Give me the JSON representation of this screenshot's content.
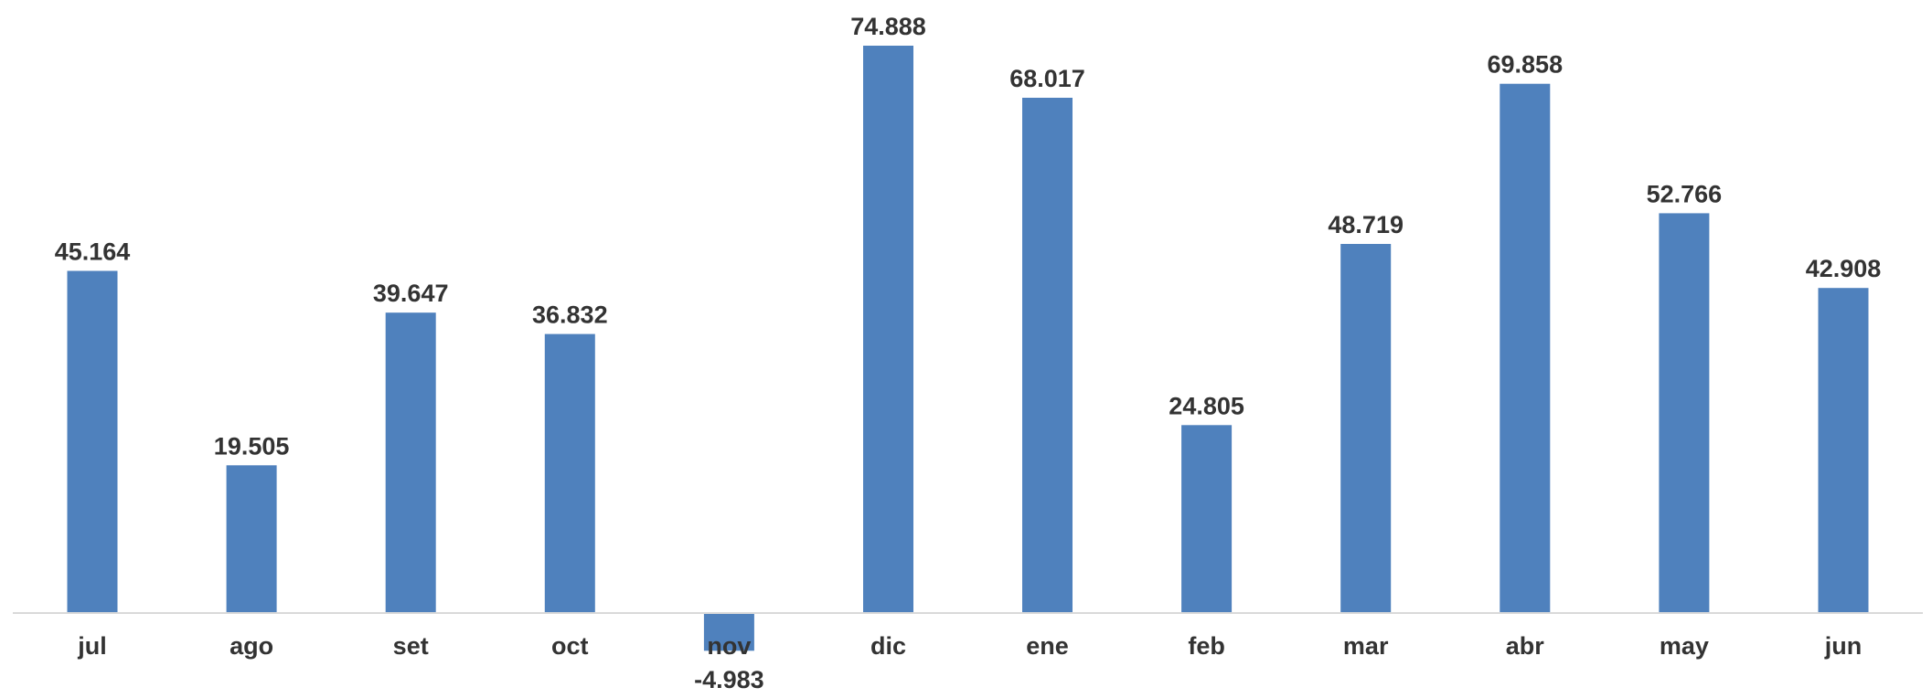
{
  "colors": {
    "bar": "#4f81bd",
    "axis": "#d9d9d9",
    "text": "#333333"
  },
  "chart_data": {
    "type": "bar",
    "categories": [
      "jul",
      "ago",
      "set",
      "oct",
      "nov",
      "dic",
      "ene",
      "feb",
      "mar",
      "abr",
      "may",
      "jun"
    ],
    "values": [
      45164,
      19505,
      39647,
      36832,
      -4983,
      74888,
      68017,
      24805,
      48719,
      69858,
      52766,
      42908
    ],
    "data_labels": [
      "45.164",
      "19.505",
      "39.647",
      "36.832",
      "-4.983",
      "74.888",
      "68.017",
      "24.805",
      "48.719",
      "69.858",
      "52.766",
      "42.908"
    ],
    "title": "",
    "xlabel": "",
    "ylabel": "",
    "grid": false,
    "legend": "none"
  }
}
